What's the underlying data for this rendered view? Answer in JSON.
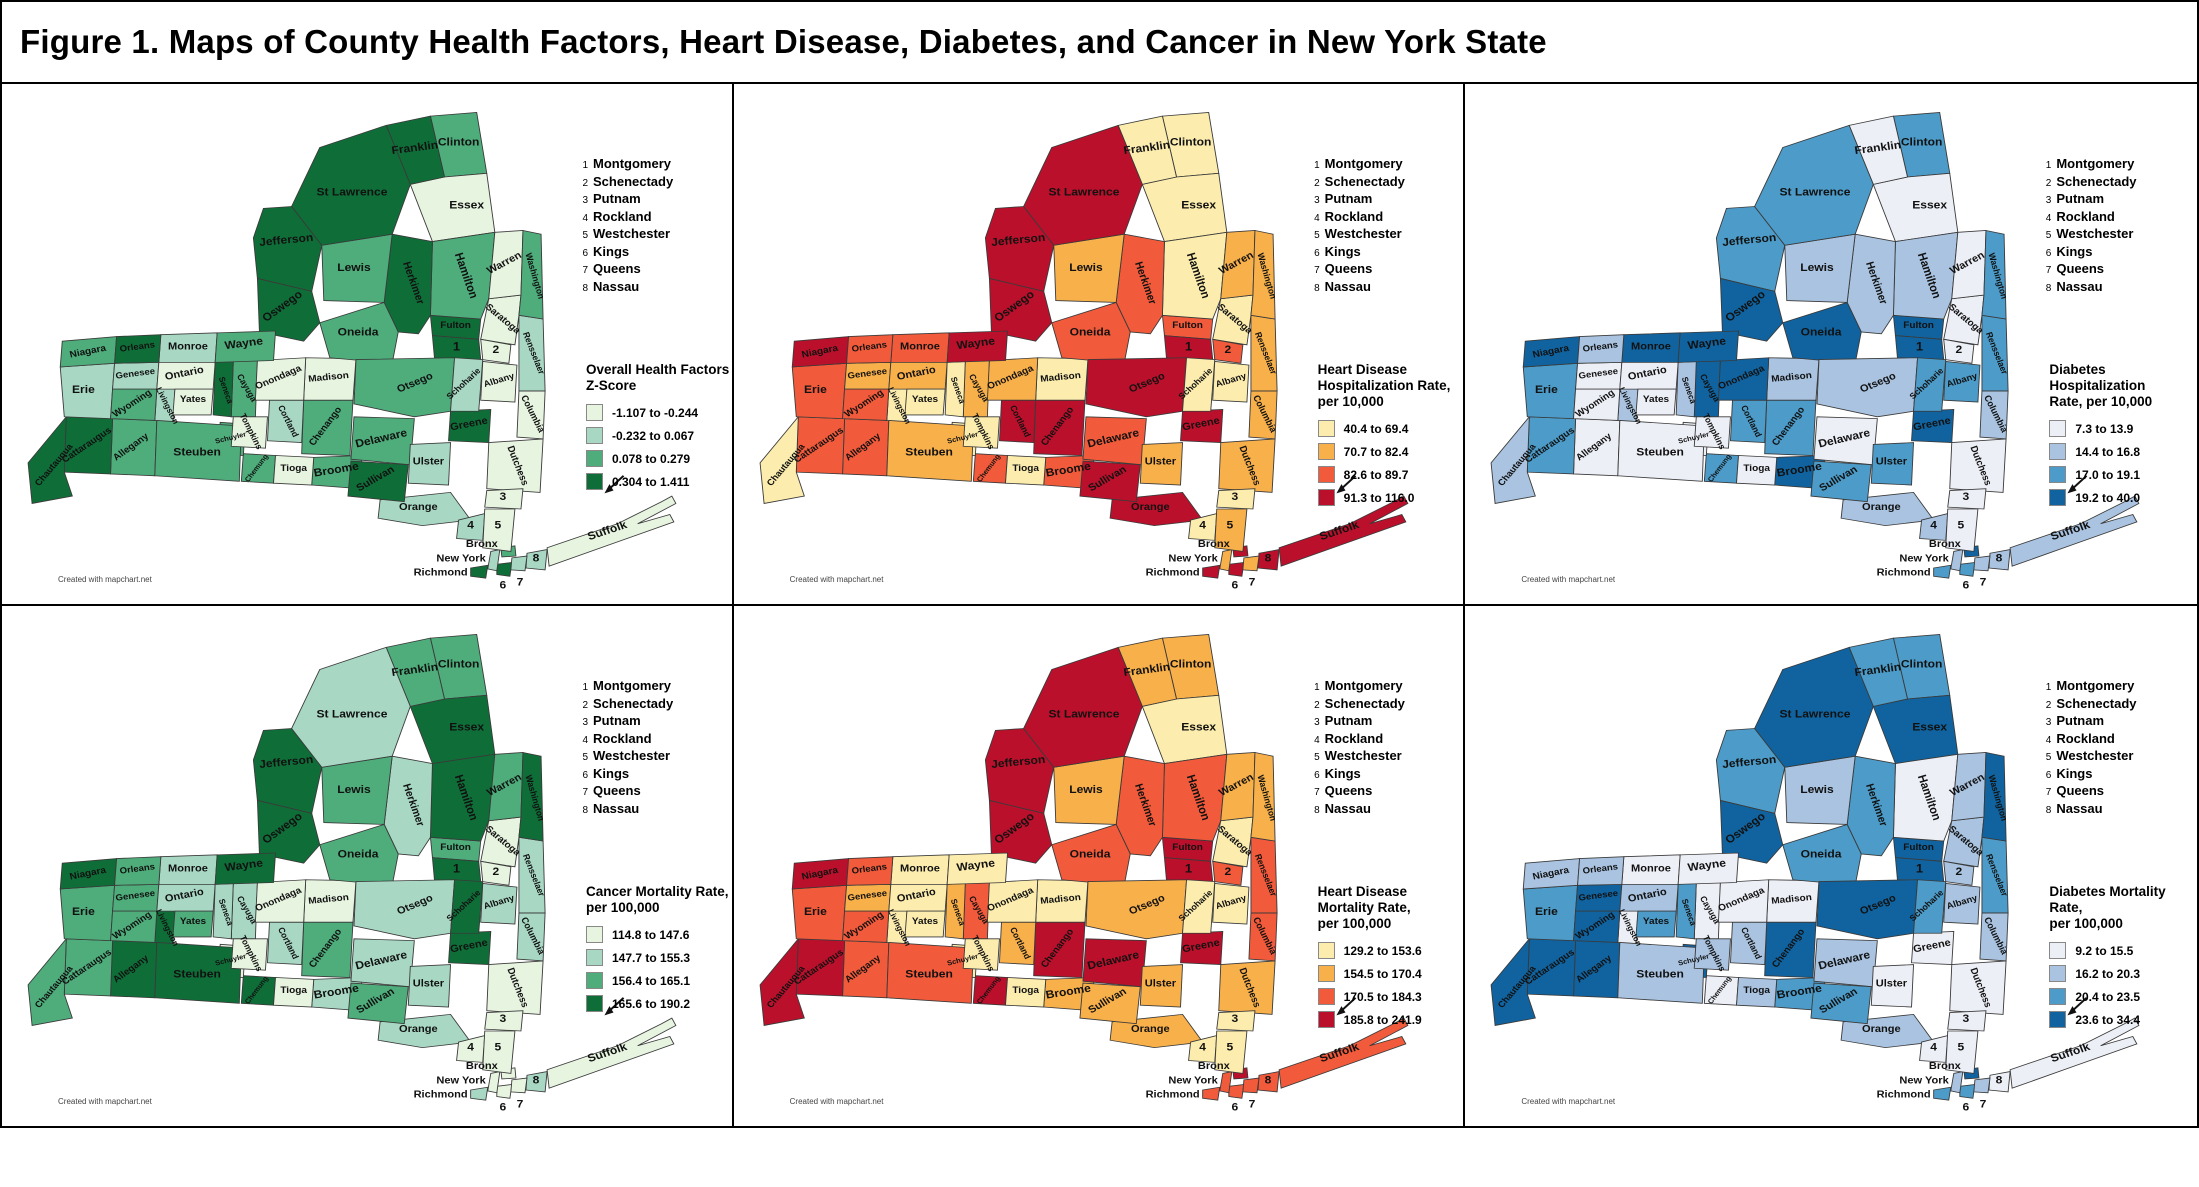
{
  "figure": {
    "title": "Figure 1. Maps of County Health Factors, Heart Disease, Diabetes, and Cancer in New York State",
    "attribution": "Created with mapchart.net"
  },
  "numbered_counties": [
    {
      "num": "1",
      "name": "Montgomery"
    },
    {
      "num": "2",
      "name": "Schenectady"
    },
    {
      "num": "3",
      "name": "Putnam"
    },
    {
      "num": "4",
      "name": "Rockland"
    },
    {
      "num": "5",
      "name": "Westchester"
    },
    {
      "num": "6",
      "name": "Kings"
    },
    {
      "num": "7",
      "name": "Queens"
    },
    {
      "num": "8",
      "name": "Nassau"
    }
  ],
  "palettes": {
    "green": [
      "#e7f4e0",
      "#a8d8c4",
      "#4ead7b",
      "#0f6e38"
    ],
    "red": [
      "#fcedae",
      "#f8b04b",
      "#f15a3a",
      "#bb102b"
    ],
    "blue": [
      "#edeff7",
      "#a9c3e0",
      "#4c9bc8",
      "#10639f"
    ]
  },
  "counties": [
    {
      "id": "albany",
      "name": "Albany",
      "map_label": "Albany"
    },
    {
      "id": "allegany",
      "name": "Allegany",
      "map_label": "Allegany"
    },
    {
      "id": "bronx",
      "name": "Bronx",
      "map_label": "Bronx"
    },
    {
      "id": "broome",
      "name": "Broome",
      "map_label": "Broome"
    },
    {
      "id": "cattaraugus",
      "name": "Cattaraugus",
      "map_label": "Cattaraugus"
    },
    {
      "id": "cayuga",
      "name": "Cayuga",
      "map_label": "Cayuga"
    },
    {
      "id": "chautauqua",
      "name": "Chautauqua",
      "map_label": "Chautauqua"
    },
    {
      "id": "chemung",
      "name": "Chemung",
      "map_label": "Chemung"
    },
    {
      "id": "chenango",
      "name": "Chenango",
      "map_label": "Chenango"
    },
    {
      "id": "clinton",
      "name": "Clinton",
      "map_label": "Clinton"
    },
    {
      "id": "columbia",
      "name": "Columbia",
      "map_label": "Columbia"
    },
    {
      "id": "cortland",
      "name": "Cortland",
      "map_label": "Cortland"
    },
    {
      "id": "delaware",
      "name": "Delaware",
      "map_label": "Delaware"
    },
    {
      "id": "dutchess",
      "name": "Dutchess",
      "map_label": "Dutchess"
    },
    {
      "id": "erie",
      "name": "Erie",
      "map_label": "Erie"
    },
    {
      "id": "essex",
      "name": "Essex",
      "map_label": "Essex"
    },
    {
      "id": "franklin",
      "name": "Franklin",
      "map_label": "Franklin"
    },
    {
      "id": "fulton",
      "name": "Fulton",
      "map_label": "Fulton"
    },
    {
      "id": "genesee",
      "name": "Genesee",
      "map_label": "Genesee"
    },
    {
      "id": "greene",
      "name": "Greene",
      "map_label": "Greene"
    },
    {
      "id": "hamilton",
      "name": "Hamilton",
      "map_label": "Hamilton"
    },
    {
      "id": "herkimer",
      "name": "Herkimer",
      "map_label": "Herkimer"
    },
    {
      "id": "jefferson",
      "name": "Jefferson",
      "map_label": "Jefferson"
    },
    {
      "id": "kings",
      "name": "Kings",
      "map_label": "6"
    },
    {
      "id": "lewis",
      "name": "Lewis",
      "map_label": "Lewis"
    },
    {
      "id": "livingston",
      "name": "Livingston",
      "map_label": "Livingston"
    },
    {
      "id": "madison",
      "name": "Madison",
      "map_label": "Madison"
    },
    {
      "id": "monroe",
      "name": "Monroe",
      "map_label": "Monroe"
    },
    {
      "id": "montgomery",
      "name": "Montgomery",
      "map_label": "1"
    },
    {
      "id": "nassau",
      "name": "Nassau",
      "map_label": "8"
    },
    {
      "id": "new-york",
      "name": "New York",
      "map_label": "New York"
    },
    {
      "id": "niagara",
      "name": "Niagara",
      "map_label": "Niagara"
    },
    {
      "id": "oneida",
      "name": "Oneida",
      "map_label": "Oneida"
    },
    {
      "id": "onondaga",
      "name": "Onondaga",
      "map_label": "Onondaga"
    },
    {
      "id": "ontario",
      "name": "Ontario",
      "map_label": "Ontario"
    },
    {
      "id": "orange",
      "name": "Orange",
      "map_label": "Orange"
    },
    {
      "id": "orleans",
      "name": "Orleans",
      "map_label": "Orleans"
    },
    {
      "id": "oswego",
      "name": "Oswego",
      "map_label": "Oswego"
    },
    {
      "id": "otsego",
      "name": "Otsego",
      "map_label": "Otsego"
    },
    {
      "id": "putnam",
      "name": "Putnam",
      "map_label": "3"
    },
    {
      "id": "queens",
      "name": "Queens",
      "map_label": "7"
    },
    {
      "id": "rensselaer",
      "name": "Rensselaer",
      "map_label": "Rensselaer"
    },
    {
      "id": "richmond",
      "name": "Richmond",
      "map_label": "Richmond"
    },
    {
      "id": "rockland",
      "name": "Rockland",
      "map_label": "4"
    },
    {
      "id": "st-lawrence",
      "name": "St Lawrence",
      "map_label": "St Lawrence"
    },
    {
      "id": "saratoga",
      "name": "Saratoga",
      "map_label": "Saratoga"
    },
    {
      "id": "schenectady",
      "name": "Schenectady",
      "map_label": "2"
    },
    {
      "id": "schoharie",
      "name": "Schoharie",
      "map_label": "Schoharie"
    },
    {
      "id": "schuyler",
      "name": "Schuyler",
      "map_label": "Schuyler"
    },
    {
      "id": "seneca",
      "name": "Seneca",
      "map_label": "Seneca"
    },
    {
      "id": "steuben",
      "name": "Steuben",
      "map_label": "Steuben"
    },
    {
      "id": "suffolk",
      "name": "Suffolk",
      "map_label": "Suffolk"
    },
    {
      "id": "sullivan",
      "name": "Sullivan",
      "map_label": "Sullivan"
    },
    {
      "id": "tioga",
      "name": "Tioga",
      "map_label": "Tioga"
    },
    {
      "id": "tompkins",
      "name": "Tompkins",
      "map_label": "Tompkins"
    },
    {
      "id": "ulster",
      "name": "Ulster",
      "map_label": "Ulster"
    },
    {
      "id": "warren",
      "name": "Warren",
      "map_label": "Warren"
    },
    {
      "id": "washington",
      "name": "Washington",
      "map_label": "Washington"
    },
    {
      "id": "wayne",
      "name": "Wayne",
      "map_label": "Wayne"
    },
    {
      "id": "westchester",
      "name": "Westchester",
      "map_label": "5"
    },
    {
      "id": "wyoming",
      "name": "Wyoming",
      "map_label": "Wyoming"
    },
    {
      "id": "yates",
      "name": "Yates",
      "map_label": "Yates"
    }
  ],
  "maps": [
    {
      "id": "health-factors",
      "palette": "green",
      "legend_title_lines": [
        "Overall Health Factors",
        "Z-Score"
      ],
      "legend_items": [
        "-1.107 to -0.244",
        "-0.232 to 0.067",
        "0.078 to 0.279",
        "0.304 to 1.411"
      ],
      "classes": {
        "albany": 1,
        "allegany": 3,
        "bronx": 3,
        "broome": 3,
        "cattaraugus": 4,
        "cayuga": 3,
        "chautauqua": 4,
        "chemung": 3,
        "chenango": 3,
        "clinton": 3,
        "columbia": 1,
        "cortland": 2,
        "delaware": 3,
        "dutchess": 1,
        "erie": 2,
        "essex": 1,
        "franklin": 4,
        "fulton": 4,
        "genesee": 2,
        "greene": 4,
        "hamilton": 3,
        "herkimer": 4,
        "jefferson": 4,
        "kings": 4,
        "lewis": 3,
        "livingston": 2,
        "madison": 1,
        "monroe": 2,
        "montgomery": 4,
        "nassau": 2,
        "new-york": 2,
        "niagara": 3,
        "oneida": 3,
        "onondaga": 1,
        "ontario": 1,
        "orange": 2,
        "orleans": 4,
        "oswego": 4,
        "otsego": 3,
        "putnam": 1,
        "queens": 2,
        "rensselaer": 2,
        "richmond": 4,
        "rockland": 2,
        "st-lawrence": 4,
        "saratoga": 1,
        "schenectady": 1,
        "schoharie": 2,
        "schuyler": 3,
        "seneca": 4,
        "steuben": 3,
        "suffolk": 1,
        "sullivan": 4,
        "tioga": 1,
        "tompkins": 1,
        "ulster": 2,
        "warren": 1,
        "washington": 3,
        "wayne": 3,
        "westchester": 1,
        "wyoming": 3,
        "yates": 1
      }
    },
    {
      "id": "heart-hospitalization",
      "palette": "red",
      "legend_title_lines": [
        "Heart Disease",
        "Hospitalization Rate,",
        "per 10,000"
      ],
      "legend_items": [
        "40.4 to 69.4",
        "70.7 to 82.4",
        "82.6 to 89.7",
        "91.3 to 116.0"
      ],
      "classes": {
        "albany": 1,
        "allegany": 3,
        "bronx": 4,
        "broome": 3,
        "cattaraugus": 3,
        "cayuga": 2,
        "chautauqua": 1,
        "chemung": 3,
        "chenango": 4,
        "clinton": 1,
        "columbia": 2,
        "cortland": 4,
        "delaware": 3,
        "dutchess": 2,
        "erie": 3,
        "essex": 1,
        "franklin": 1,
        "fulton": 3,
        "genesee": 2,
        "greene": 4,
        "hamilton": 1,
        "herkimer": 3,
        "jefferson": 4,
        "kings": 4,
        "lewis": 2,
        "livingston": 1,
        "madison": 1,
        "monroe": 3,
        "montgomery": 4,
        "nassau": 4,
        "new-york": 2,
        "niagara": 4,
        "oneida": 3,
        "onondaga": 2,
        "ontario": 2,
        "orange": 4,
        "orleans": 3,
        "oswego": 4,
        "otsego": 4,
        "putnam": 1,
        "queens": 2,
        "rensselaer": 2,
        "richmond": 4,
        "rockland": 1,
        "st-lawrence": 4,
        "saratoga": 1,
        "schenectady": 3,
        "schoharie": 1,
        "schuyler": 1,
        "seneca": 1,
        "steuben": 2,
        "suffolk": 4,
        "sullivan": 4,
        "tioga": 1,
        "tompkins": 1,
        "ulster": 2,
        "warren": 2,
        "washington": 2,
        "wayne": 4,
        "westchester": 2,
        "wyoming": 3,
        "yates": 1
      }
    },
    {
      "id": "diabetes-hospitalization",
      "palette": "blue",
      "legend_title_lines": [
        "Diabetes Hospitalization",
        "Rate, per 10,000"
      ],
      "legend_items": [
        "7.3 to 13.9",
        "14.4 to 16.8",
        "17.0 to 19.1",
        "19.2 to 40.0"
      ],
      "classes": {
        "albany": 3,
        "allegany": 1,
        "bronx": 4,
        "broome": 4,
        "cattaraugus": 3,
        "cayuga": 4,
        "chautauqua": 2,
        "chemung": 3,
        "chenango": 3,
        "clinton": 3,
        "columbia": 2,
        "cortland": 3,
        "delaware": 1,
        "dutchess": 1,
        "erie": 3,
        "essex": 1,
        "franklin": 1,
        "fulton": 4,
        "genesee": 1,
        "greene": 4,
        "hamilton": 2,
        "herkimer": 2,
        "jefferson": 3,
        "kings": 3,
        "lewis": 2,
        "livingston": 2,
        "madison": 2,
        "monroe": 4,
        "montgomery": 4,
        "nassau": 2,
        "new-york": 2,
        "niagara": 4,
        "oneida": 4,
        "onondaga": 4,
        "ontario": 1,
        "orange": 2,
        "orleans": 2,
        "oswego": 4,
        "otsego": 2,
        "putnam": 1,
        "queens": 2,
        "rensselaer": 3,
        "richmond": 3,
        "rockland": 2,
        "st-lawrence": 3,
        "saratoga": 1,
        "schenectady": 1,
        "schoharie": 3,
        "schuyler": 1,
        "seneca": 2,
        "steuben": 1,
        "suffolk": 2,
        "sullivan": 3,
        "tioga": 1,
        "tompkins": 1,
        "ulster": 3,
        "warren": 1,
        "washington": 3,
        "wayne": 4,
        "westchester": 1,
        "wyoming": 1,
        "yates": 1
      }
    },
    {
      "id": "cancer-mortality",
      "palette": "green",
      "legend_title_lines": [
        "Cancer Mortality Rate,",
        "per 100,000"
      ],
      "legend_items": [
        "114.8 to 147.6",
        "147.7 to 155.3",
        "156.4 to 165.1",
        "165.6 to 190.2"
      ],
      "classes": {
        "albany": 2,
        "allegany": 4,
        "bronx": 1,
        "broome": 2,
        "cattaraugus": 3,
        "cayuga": 2,
        "chautauqua": 3,
        "chemung": 4,
        "chenango": 3,
        "clinton": 3,
        "columbia": 2,
        "cortland": 2,
        "delaware": 2,
        "dutchess": 1,
        "erie": 3,
        "essex": 4,
        "franklin": 3,
        "fulton": 3,
        "genesee": 3,
        "greene": 4,
        "hamilton": 4,
        "herkimer": 2,
        "jefferson": 4,
        "kings": 1,
        "lewis": 3,
        "livingston": 4,
        "madison": 1,
        "monroe": 2,
        "montgomery": 4,
        "nassau": 2,
        "new-york": 1,
        "niagara": 4,
        "oneida": 3,
        "onondaga": 1,
        "ontario": 2,
        "orange": 2,
        "orleans": 3,
        "oswego": 4,
        "otsego": 2,
        "putnam": 1,
        "queens": 1,
        "rensselaer": 2,
        "richmond": 2,
        "rockland": 1,
        "st-lawrence": 2,
        "saratoga": 1,
        "schenectady": 1,
        "schoharie": 4,
        "schuyler": 1,
        "seneca": 2,
        "steuben": 4,
        "suffolk": 1,
        "sullivan": 3,
        "tioga": 1,
        "tompkins": 1,
        "ulster": 2,
        "warren": 3,
        "washington": 4,
        "wayne": 4,
        "westchester": 1,
        "wyoming": 3,
        "yates": 3
      }
    },
    {
      "id": "heart-mortality",
      "palette": "red",
      "legend_title_lines": [
        "Heart Disease",
        "Mortality Rate,",
        "per 100,000"
      ],
      "legend_items": [
        "129.2 to 153.6",
        "154.5 to 170.4",
        "170.5 to 184.3",
        "185.8 to 241.9"
      ],
      "classes": {
        "albany": 1,
        "allegany": 3,
        "bronx": 4,
        "broome": 2,
        "cattaraugus": 4,
        "cayuga": 3,
        "chautauqua": 4,
        "chemung": 4,
        "chenango": 4,
        "clinton": 2,
        "columbia": 3,
        "cortland": 2,
        "delaware": 4,
        "dutchess": 2,
        "erie": 3,
        "essex": 1,
        "franklin": 2,
        "fulton": 4,
        "genesee": 2,
        "greene": 4,
        "hamilton": 3,
        "herkimer": 3,
        "jefferson": 4,
        "kings": 3,
        "lewis": 2,
        "livingston": 1,
        "madison": 1,
        "monroe": 1,
        "montgomery": 4,
        "nassau": 3,
        "new-york": 3,
        "niagara": 4,
        "oneida": 3,
        "onondaga": 1,
        "ontario": 1,
        "orange": 2,
        "orleans": 3,
        "oswego": 4,
        "otsego": 2,
        "putnam": 1,
        "queens": 3,
        "rensselaer": 3,
        "richmond": 3,
        "rockland": 1,
        "st-lawrence": 4,
        "saratoga": 1,
        "schenectady": 3,
        "schoharie": 1,
        "schuyler": 1,
        "seneca": 2,
        "steuben": 3,
        "suffolk": 3,
        "sullivan": 2,
        "tioga": 1,
        "tompkins": 1,
        "ulster": 2,
        "warren": 2,
        "washington": 2,
        "wayne": 1,
        "westchester": 1,
        "wyoming": 3,
        "yates": 1
      }
    },
    {
      "id": "diabetes-mortality",
      "palette": "blue",
      "legend_title_lines": [
        "Diabetes Mortality Rate,",
        "per 100,000"
      ],
      "legend_items": [
        "9.2 to 15.5",
        "16.2 to 20.3",
        "20.4 to 23.5",
        "23.6 to 34.4"
      ],
      "classes": {
        "albany": 2,
        "allegany": 4,
        "bronx": 4,
        "broome": 3,
        "cattaraugus": 4,
        "cayuga": 1,
        "chautauqua": 4,
        "chemung": 1,
        "chenango": 4,
        "clinton": 3,
        "columbia": 2,
        "cortland": 2,
        "delaware": 2,
        "dutchess": 1,
        "erie": 3,
        "essex": 4,
        "franklin": 3,
        "fulton": 4,
        "genesee": 4,
        "greene": 1,
        "hamilton": 1,
        "herkimer": 3,
        "jefferson": 3,
        "kings": 3,
        "lewis": 2,
        "livingston": 1,
        "madison": 1,
        "monroe": 1,
        "montgomery": 4,
        "nassau": 1,
        "new-york": 2,
        "niagara": 2,
        "oneida": 3,
        "onondaga": 1,
        "ontario": 2,
        "orange": 2,
        "orleans": 2,
        "oswego": 4,
        "otsego": 4,
        "putnam": 1,
        "queens": 2,
        "rensselaer": 3,
        "richmond": 3,
        "rockland": 1,
        "st-lawrence": 4,
        "saratoga": 2,
        "schenectady": 2,
        "schoharie": 3,
        "schuyler": 4,
        "seneca": 3,
        "steuben": 2,
        "suffolk": 1,
        "sullivan": 3,
        "tioga": 2,
        "tompkins": 2,
        "ulster": 1,
        "warren": 2,
        "washington": 4,
        "wayne": 1,
        "westchester": 1,
        "wyoming": 4,
        "yates": 3
      }
    }
  ]
}
